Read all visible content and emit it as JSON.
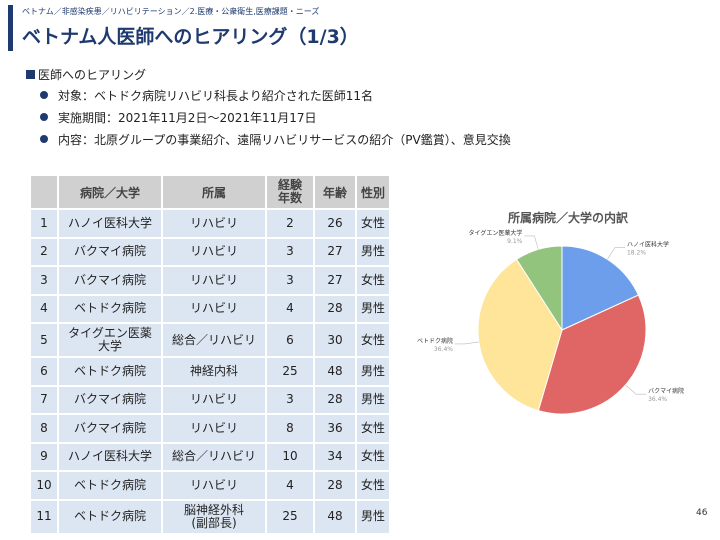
{
  "header": {
    "breadcrumb": "ベトナム／非感染疾患／リハビリテーション／2.医療・公衆衛生,医療課題・ニーズ",
    "title": "ベトナム人医師へのヒアリング（1/3）"
  },
  "section": {
    "heading": "医師へのヒアリング",
    "bullets": [
      "対象：ベトドク病院リハビリ科長より紹介された医師11名",
      "実施期間：2021年11月2日〜2021年11月17日",
      "内容：北原グループの事業紹介、遠隔リハビリサービスの紹介（PV鑑賞）、意見交換"
    ]
  },
  "table": {
    "headers": [
      "",
      "病院／大学",
      "所属",
      "経験\n年数",
      "年齢",
      "性別"
    ],
    "rows": [
      [
        "1",
        "ハノイ医科大学",
        "リハビリ",
        "2",
        "26",
        "女性"
      ],
      [
        "2",
        "バクマイ病院",
        "リハビリ",
        "3",
        "27",
        "男性"
      ],
      [
        "3",
        "バクマイ病院",
        "リハビリ",
        "3",
        "27",
        "女性"
      ],
      [
        "4",
        "ベトドク病院",
        "リハビリ",
        "4",
        "28",
        "男性"
      ],
      [
        "5",
        "タイグエン医薬\n大学",
        "総合／リハビリ",
        "6",
        "30",
        "女性"
      ],
      [
        "6",
        "ベトドク病院",
        "神経内科",
        "25",
        "48",
        "男性"
      ],
      [
        "7",
        "バクマイ病院",
        "リハビリ",
        "3",
        "28",
        "男性"
      ],
      [
        "8",
        "バクマイ病院",
        "リハビリ",
        "8",
        "36",
        "女性"
      ],
      [
        "9",
        "ハノイ医科大学",
        "総合／リハビリ",
        "10",
        "34",
        "女性"
      ],
      [
        "10",
        "ベトドク病院",
        "リハビリ",
        "4",
        "28",
        "女性"
      ],
      [
        "11",
        "ベトドク病院",
        "脳神経外科\n(副部長)",
        "25",
        "48",
        "男性"
      ]
    ]
  },
  "chart_data": {
    "type": "pie",
    "title": "所属病院／大学の内訳",
    "slices": [
      {
        "label": "ハノイ医科大学",
        "value": 18.2,
        "value_label": "18.2%",
        "color": "#6d9eeb"
      },
      {
        "label": "バクマイ病院",
        "value": 36.4,
        "value_label": "36.4%",
        "color": "#e06666"
      },
      {
        "label": "ベトドク病院",
        "value": 36.4,
        "value_label": "36.4%",
        "color": "#ffe599"
      },
      {
        "label": "タイグエン医薬大学",
        "value": 9.1,
        "value_label": "9.1%",
        "color": "#93c47d"
      }
    ]
  },
  "footer": {
    "page_number": "46"
  },
  "colors": {
    "accent": "#1f3a6e",
    "cell": "#dce6f2",
    "header_cell": "#d0d0d0"
  }
}
